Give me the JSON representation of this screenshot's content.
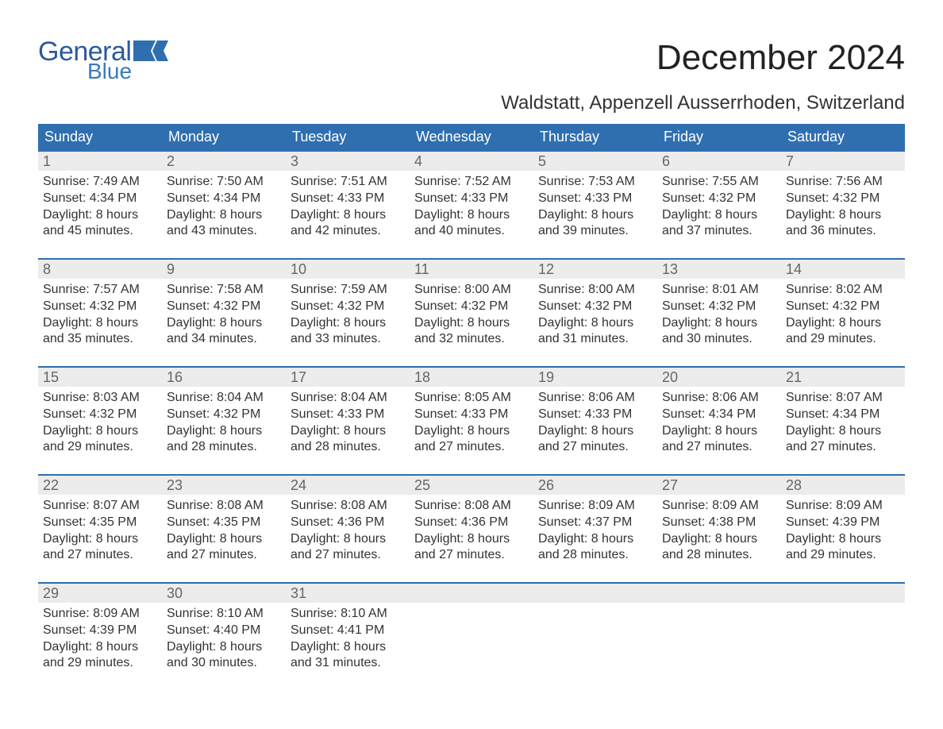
{
  "brand": {
    "word1": "General",
    "word2": "Blue",
    "word1_color": "#2a5a9a",
    "word2_color": "#3a7abf",
    "flag_color": "#2f6fb0"
  },
  "title": "December 2024",
  "location": "Waldstatt, Appenzell Ausserrhoden, Switzerland",
  "colors": {
    "header_bg": "#2f6fb0",
    "header_text": "#ffffff",
    "daynum_bg": "#ececec",
    "daynum_text": "#666666",
    "body_text": "#333333",
    "rule": "#2f6fb0",
    "page_bg": "#ffffff"
  },
  "weekdays": [
    "Sunday",
    "Monday",
    "Tuesday",
    "Wednesday",
    "Thursday",
    "Friday",
    "Saturday"
  ],
  "weeks": [
    [
      {
        "day": "1",
        "sunrise": "Sunrise: 7:49 AM",
        "sunset": "Sunset: 4:34 PM",
        "dl1": "Daylight: 8 hours",
        "dl2": "and 45 minutes."
      },
      {
        "day": "2",
        "sunrise": "Sunrise: 7:50 AM",
        "sunset": "Sunset: 4:34 PM",
        "dl1": "Daylight: 8 hours",
        "dl2": "and 43 minutes."
      },
      {
        "day": "3",
        "sunrise": "Sunrise: 7:51 AM",
        "sunset": "Sunset: 4:33 PM",
        "dl1": "Daylight: 8 hours",
        "dl2": "and 42 minutes."
      },
      {
        "day": "4",
        "sunrise": "Sunrise: 7:52 AM",
        "sunset": "Sunset: 4:33 PM",
        "dl1": "Daylight: 8 hours",
        "dl2": "and 40 minutes."
      },
      {
        "day": "5",
        "sunrise": "Sunrise: 7:53 AM",
        "sunset": "Sunset: 4:33 PM",
        "dl1": "Daylight: 8 hours",
        "dl2": "and 39 minutes."
      },
      {
        "day": "6",
        "sunrise": "Sunrise: 7:55 AM",
        "sunset": "Sunset: 4:32 PM",
        "dl1": "Daylight: 8 hours",
        "dl2": "and 37 minutes."
      },
      {
        "day": "7",
        "sunrise": "Sunrise: 7:56 AM",
        "sunset": "Sunset: 4:32 PM",
        "dl1": "Daylight: 8 hours",
        "dl2": "and 36 minutes."
      }
    ],
    [
      {
        "day": "8",
        "sunrise": "Sunrise: 7:57 AM",
        "sunset": "Sunset: 4:32 PM",
        "dl1": "Daylight: 8 hours",
        "dl2": "and 35 minutes."
      },
      {
        "day": "9",
        "sunrise": "Sunrise: 7:58 AM",
        "sunset": "Sunset: 4:32 PM",
        "dl1": "Daylight: 8 hours",
        "dl2": "and 34 minutes."
      },
      {
        "day": "10",
        "sunrise": "Sunrise: 7:59 AM",
        "sunset": "Sunset: 4:32 PM",
        "dl1": "Daylight: 8 hours",
        "dl2": "and 33 minutes."
      },
      {
        "day": "11",
        "sunrise": "Sunrise: 8:00 AM",
        "sunset": "Sunset: 4:32 PM",
        "dl1": "Daylight: 8 hours",
        "dl2": "and 32 minutes."
      },
      {
        "day": "12",
        "sunrise": "Sunrise: 8:00 AM",
        "sunset": "Sunset: 4:32 PM",
        "dl1": "Daylight: 8 hours",
        "dl2": "and 31 minutes."
      },
      {
        "day": "13",
        "sunrise": "Sunrise: 8:01 AM",
        "sunset": "Sunset: 4:32 PM",
        "dl1": "Daylight: 8 hours",
        "dl2": "and 30 minutes."
      },
      {
        "day": "14",
        "sunrise": "Sunrise: 8:02 AM",
        "sunset": "Sunset: 4:32 PM",
        "dl1": "Daylight: 8 hours",
        "dl2": "and 29 minutes."
      }
    ],
    [
      {
        "day": "15",
        "sunrise": "Sunrise: 8:03 AM",
        "sunset": "Sunset: 4:32 PM",
        "dl1": "Daylight: 8 hours",
        "dl2": "and 29 minutes."
      },
      {
        "day": "16",
        "sunrise": "Sunrise: 8:04 AM",
        "sunset": "Sunset: 4:32 PM",
        "dl1": "Daylight: 8 hours",
        "dl2": "and 28 minutes."
      },
      {
        "day": "17",
        "sunrise": "Sunrise: 8:04 AM",
        "sunset": "Sunset: 4:33 PM",
        "dl1": "Daylight: 8 hours",
        "dl2": "and 28 minutes."
      },
      {
        "day": "18",
        "sunrise": "Sunrise: 8:05 AM",
        "sunset": "Sunset: 4:33 PM",
        "dl1": "Daylight: 8 hours",
        "dl2": "and 27 minutes."
      },
      {
        "day": "19",
        "sunrise": "Sunrise: 8:06 AM",
        "sunset": "Sunset: 4:33 PM",
        "dl1": "Daylight: 8 hours",
        "dl2": "and 27 minutes."
      },
      {
        "day": "20",
        "sunrise": "Sunrise: 8:06 AM",
        "sunset": "Sunset: 4:34 PM",
        "dl1": "Daylight: 8 hours",
        "dl2": "and 27 minutes."
      },
      {
        "day": "21",
        "sunrise": "Sunrise: 8:07 AM",
        "sunset": "Sunset: 4:34 PM",
        "dl1": "Daylight: 8 hours",
        "dl2": "and 27 minutes."
      }
    ],
    [
      {
        "day": "22",
        "sunrise": "Sunrise: 8:07 AM",
        "sunset": "Sunset: 4:35 PM",
        "dl1": "Daylight: 8 hours",
        "dl2": "and 27 minutes."
      },
      {
        "day": "23",
        "sunrise": "Sunrise: 8:08 AM",
        "sunset": "Sunset: 4:35 PM",
        "dl1": "Daylight: 8 hours",
        "dl2": "and 27 minutes."
      },
      {
        "day": "24",
        "sunrise": "Sunrise: 8:08 AM",
        "sunset": "Sunset: 4:36 PM",
        "dl1": "Daylight: 8 hours",
        "dl2": "and 27 minutes."
      },
      {
        "day": "25",
        "sunrise": "Sunrise: 8:08 AM",
        "sunset": "Sunset: 4:36 PM",
        "dl1": "Daylight: 8 hours",
        "dl2": "and 27 minutes."
      },
      {
        "day": "26",
        "sunrise": "Sunrise: 8:09 AM",
        "sunset": "Sunset: 4:37 PM",
        "dl1": "Daylight: 8 hours",
        "dl2": "and 28 minutes."
      },
      {
        "day": "27",
        "sunrise": "Sunrise: 8:09 AM",
        "sunset": "Sunset: 4:38 PM",
        "dl1": "Daylight: 8 hours",
        "dl2": "and 28 minutes."
      },
      {
        "day": "28",
        "sunrise": "Sunrise: 8:09 AM",
        "sunset": "Sunset: 4:39 PM",
        "dl1": "Daylight: 8 hours",
        "dl2": "and 29 minutes."
      }
    ],
    [
      {
        "day": "29",
        "sunrise": "Sunrise: 8:09 AM",
        "sunset": "Sunset: 4:39 PM",
        "dl1": "Daylight: 8 hours",
        "dl2": "and 29 minutes."
      },
      {
        "day": "30",
        "sunrise": "Sunrise: 8:10 AM",
        "sunset": "Sunset: 4:40 PM",
        "dl1": "Daylight: 8 hours",
        "dl2": "and 30 minutes."
      },
      {
        "day": "31",
        "sunrise": "Sunrise: 8:10 AM",
        "sunset": "Sunset: 4:41 PM",
        "dl1": "Daylight: 8 hours",
        "dl2": "and 31 minutes."
      },
      null,
      null,
      null,
      null
    ]
  ]
}
